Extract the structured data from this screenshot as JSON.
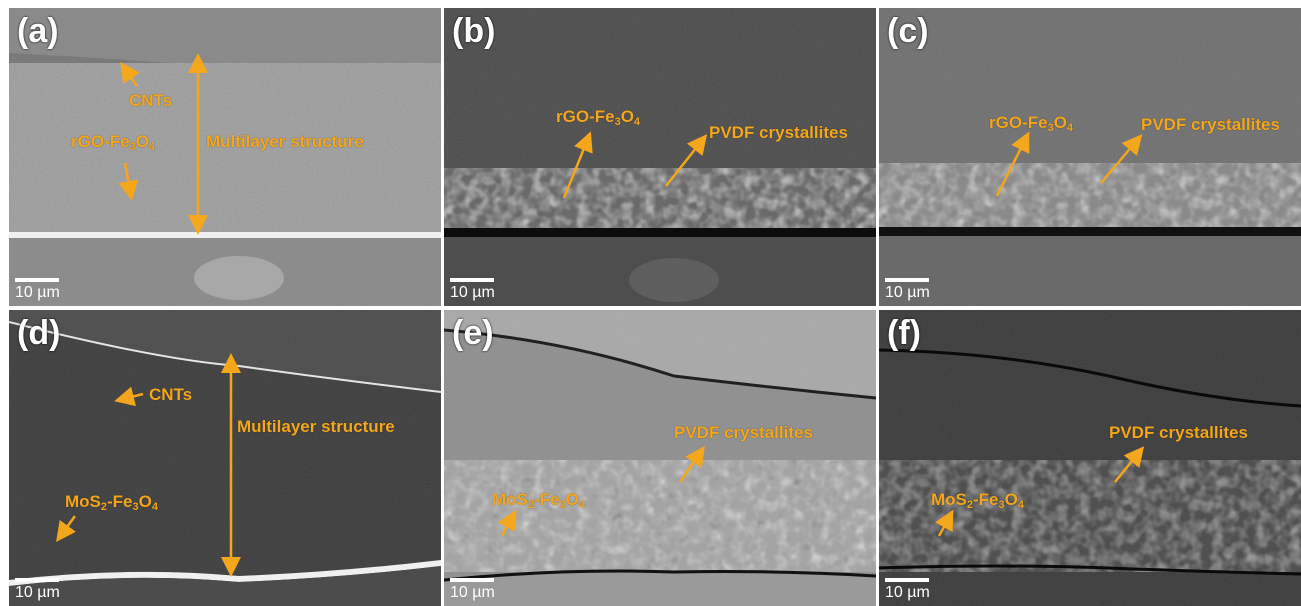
{
  "colors": {
    "annotation": "#f5a71c",
    "scale": "#ffffff",
    "label": "#ffffff"
  },
  "panels": [
    {
      "label": "(a)",
      "scale": "10 µm",
      "annotations": {
        "cnts": "CNTs",
        "multilayer": "Multilayer structure"
      }
    },
    {
      "label": "(b)",
      "scale": "10 µm",
      "annotations": {
        "pvdf": "PVDF crystallites"
      }
    },
    {
      "label": "(c)",
      "scale": "10 µm",
      "annotations": {
        "pvdf": "PVDF crystallites"
      }
    },
    {
      "label": "(d)",
      "scale": "10 µm",
      "annotations": {
        "cnts": "CNTs",
        "multilayer": "Multilayer structure"
      }
    },
    {
      "label": "(e)",
      "scale": "10 µm",
      "annotations": {
        "pvdf": "PVDF crystallites"
      }
    },
    {
      "label": "(f)",
      "scale": "10 µm",
      "annotations": {
        "pvdf": "PVDF crystallites"
      }
    }
  ],
  "formula": {
    "rgo_prefix": "rGO-Fe",
    "mos_prefix": "MoS",
    "fe": "-Fe",
    "o": "O",
    "sub_2": "2",
    "sub_3": "3",
    "sub_4": "4"
  }
}
